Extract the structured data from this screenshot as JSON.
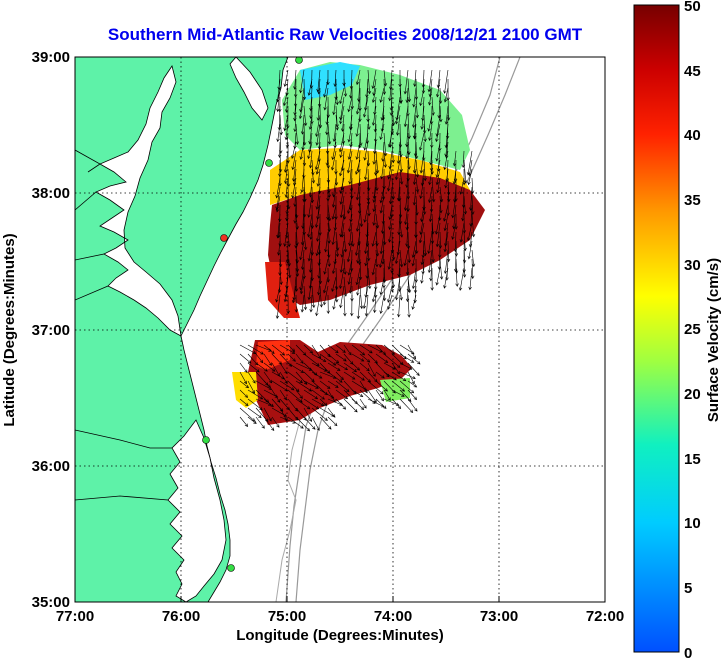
{
  "title": "Southern Mid-Atlantic Raw Velocities 2008/12/21 2100 GMT",
  "x_axis": {
    "label": "Longitude (Degrees:Minutes)",
    "ticks": [
      "77:00",
      "76:00",
      "75:00",
      "74:00",
      "73:00",
      "72:00"
    ]
  },
  "y_axis": {
    "label": "Latitude (Degrees:Minutes)",
    "ticks": [
      "39:00",
      "38:00",
      "37:00",
      "36:00",
      "35:00"
    ]
  },
  "colorbar": {
    "label": "Surface Velocity (cm/s)",
    "ticks": [
      "50",
      "45",
      "40",
      "35",
      "30",
      "25",
      "20",
      "15",
      "10",
      "5",
      "0"
    ]
  },
  "colors": {
    "land": "#5ef2a8",
    "title": "#0000ee",
    "station": "#33dd44",
    "station_alert": "#ee3322"
  }
}
